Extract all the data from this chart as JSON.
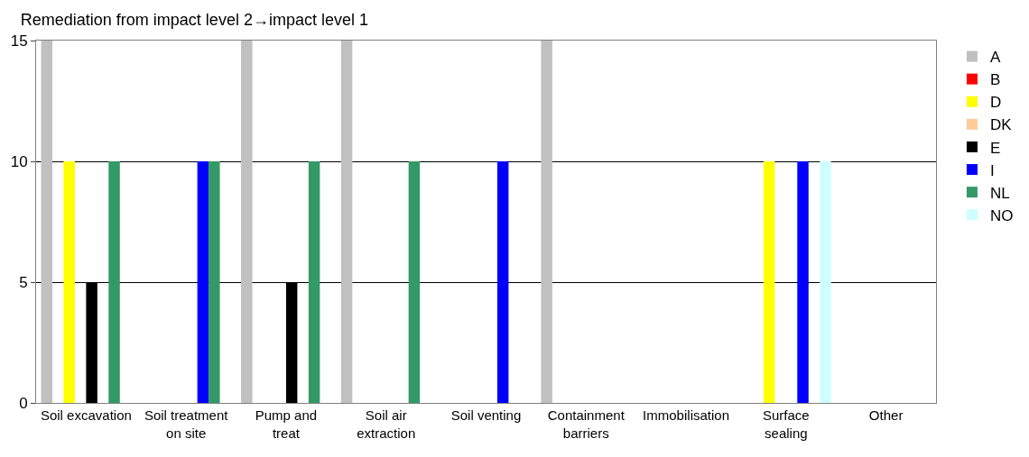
{
  "chart_data": {
    "type": "bar",
    "title": "Remediation from impact level 2→impact level 1",
    "categories": [
      "Soil excavation",
      "Soil treatment\non site",
      "Pump and\ntreat",
      "Soil air\nextraction",
      "Soil venting",
      "Containment\nbarriers",
      "Immobilisation",
      "Surface\nsealing",
      "Other"
    ],
    "series": [
      {
        "name": "A",
        "color": "#c0c0c0",
        "values": [
          15,
          0,
          15,
          15,
          0,
          15,
          0,
          0,
          0
        ]
      },
      {
        "name": "B",
        "color": "#ff0000",
        "values": [
          0,
          0,
          0,
          0,
          0,
          0,
          0,
          0,
          0
        ]
      },
      {
        "name": "D",
        "color": "#ffff00",
        "values": [
          10,
          0,
          0,
          0,
          0,
          0,
          0,
          10,
          0
        ]
      },
      {
        "name": "DK",
        "color": "#ffcc99",
        "values": [
          0,
          0,
          0,
          0,
          0,
          0,
          0,
          0,
          0
        ]
      },
      {
        "name": "E",
        "color": "#000000",
        "values": [
          5,
          0,
          5,
          0,
          0,
          0,
          0,
          0,
          0
        ]
      },
      {
        "name": "I",
        "color": "#0000ff",
        "values": [
          0,
          10,
          0,
          0,
          10,
          0,
          0,
          10,
          0
        ]
      },
      {
        "name": "NL",
        "color": "#339966",
        "values": [
          10,
          10,
          10,
          10,
          0,
          0,
          0,
          0,
          0
        ]
      },
      {
        "name": "NO",
        "color": "#ccffff",
        "values": [
          0,
          0,
          0,
          0,
          0,
          0,
          0,
          10,
          0
        ]
      }
    ],
    "ylim": [
      0,
      15
    ],
    "yticks": [
      0,
      5,
      10,
      15
    ],
    "grid": "y",
    "legend": "right"
  }
}
